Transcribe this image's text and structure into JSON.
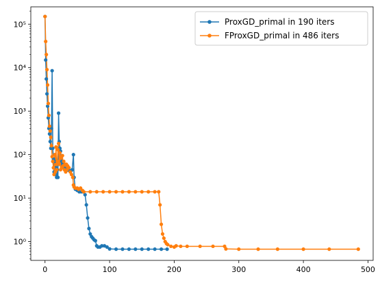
{
  "chart_data": {
    "type": "line",
    "title": "",
    "xlabel": "",
    "ylabel": "",
    "x_scale": "linear",
    "y_scale": "log",
    "xlim": [
      -22,
      508
    ],
    "ylim": [
      0.37,
      250000
    ],
    "grid": false,
    "legend_position": "top-right",
    "x_ticks": [
      0,
      100,
      200,
      300,
      400,
      500
    ],
    "x_tick_labels": [
      "0",
      "100",
      "200",
      "300",
      "400",
      "500"
    ],
    "y_ticks": [
      1,
      10,
      100,
      1000,
      10000,
      100000
    ],
    "y_tick_labels": [
      "10⁰",
      "10¹",
      "10²",
      "10³",
      "10⁴",
      "10⁵"
    ],
    "series": [
      {
        "name": "ProxGD_primal in 190 iters",
        "color": "#1f77b4",
        "iterations": 190,
        "points": [
          [
            0,
            150000
          ],
          [
            1,
            15000
          ],
          [
            2,
            5500
          ],
          [
            3,
            2500
          ],
          [
            4,
            1300
          ],
          [
            5,
            700
          ],
          [
            6,
            400
          ],
          [
            7,
            300
          ],
          [
            8,
            200
          ],
          [
            9,
            140
          ],
          [
            10,
            400
          ],
          [
            11,
            8500
          ],
          [
            12,
            140
          ],
          [
            13,
            80
          ],
          [
            14,
            40
          ],
          [
            15,
            70
          ],
          [
            16,
            35
          ],
          [
            17,
            50
          ],
          [
            18,
            30
          ],
          [
            19,
            45
          ],
          [
            20,
            30
          ],
          [
            21,
            900
          ],
          [
            22,
            200
          ],
          [
            23,
            140
          ],
          [
            24,
            120
          ],
          [
            25,
            90
          ],
          [
            26,
            70
          ],
          [
            27,
            60
          ],
          [
            28,
            55
          ],
          [
            29,
            50
          ],
          [
            30,
            48
          ],
          [
            32,
            46
          ],
          [
            34,
            45
          ],
          [
            36,
            44
          ],
          [
            38,
            43
          ],
          [
            40,
            42
          ],
          [
            42,
            45
          ],
          [
            44,
            100
          ],
          [
            45,
            30
          ],
          [
            47,
            16
          ],
          [
            50,
            15
          ],
          [
            53,
            14
          ],
          [
            56,
            14
          ],
          [
            59,
            14
          ],
          [
            62,
            12
          ],
          [
            64,
            7
          ],
          [
            66,
            3.5
          ],
          [
            68,
            2
          ],
          [
            70,
            1.5
          ],
          [
            72,
            1.3
          ],
          [
            74,
            1.2
          ],
          [
            76,
            1.1
          ],
          [
            78,
            1.05
          ],
          [
            80,
            0.8
          ],
          [
            82,
            0.75
          ],
          [
            85,
            0.75
          ],
          [
            88,
            0.8
          ],
          [
            92,
            0.8
          ],
          [
            96,
            0.75
          ],
          [
            100,
            0.68
          ],
          [
            110,
            0.67
          ],
          [
            120,
            0.67
          ],
          [
            130,
            0.67
          ],
          [
            140,
            0.67
          ],
          [
            150,
            0.67
          ],
          [
            160,
            0.67
          ],
          [
            170,
            0.67
          ],
          [
            180,
            0.67
          ],
          [
            189,
            0.67
          ]
        ]
      },
      {
        "name": "FProxGD_primal in 486 iters",
        "color": "#ff7f0e",
        "iterations": 486,
        "points": [
          [
            0,
            150000
          ],
          [
            1,
            40000
          ],
          [
            2,
            20000
          ],
          [
            3,
            9000
          ],
          [
            4,
            4000
          ],
          [
            5,
            1500
          ],
          [
            6,
            800
          ],
          [
            7,
            450
          ],
          [
            8,
            350
          ],
          [
            9,
            250
          ],
          [
            10,
            160
          ],
          [
            11,
            90
          ],
          [
            12,
            70
          ],
          [
            13,
            50
          ],
          [
            14,
            35
          ],
          [
            15,
            100
          ],
          [
            16,
            40
          ],
          [
            17,
            150
          ],
          [
            18,
            45
          ],
          [
            19,
            70
          ],
          [
            20,
            130
          ],
          [
            21,
            180
          ],
          [
            22,
            60
          ],
          [
            23,
            110
          ],
          [
            24,
            45
          ],
          [
            25,
            90
          ],
          [
            26,
            50
          ],
          [
            27,
            95
          ],
          [
            28,
            55
          ],
          [
            29,
            70
          ],
          [
            30,
            45
          ],
          [
            31,
            60
          ],
          [
            32,
            40
          ],
          [
            33,
            60
          ],
          [
            34,
            45
          ],
          [
            35,
            55
          ],
          [
            37,
            50
          ],
          [
            39,
            40
          ],
          [
            41,
            35
          ],
          [
            43,
            30
          ],
          [
            44,
            20
          ],
          [
            45,
            18
          ],
          [
            47,
            17
          ],
          [
            50,
            17
          ],
          [
            52,
            16
          ],
          [
            55,
            17
          ],
          [
            58,
            15
          ],
          [
            60,
            14
          ],
          [
            70,
            14
          ],
          [
            80,
            14
          ],
          [
            90,
            14
          ],
          [
            100,
            14
          ],
          [
            110,
            14
          ],
          [
            120,
            14
          ],
          [
            130,
            14
          ],
          [
            140,
            14
          ],
          [
            150,
            14
          ],
          [
            160,
            14
          ],
          [
            170,
            14
          ],
          [
            176,
            14
          ],
          [
            178,
            7
          ],
          [
            180,
            2.5
          ],
          [
            182,
            1.5
          ],
          [
            184,
            1.2
          ],
          [
            186,
            1.0
          ],
          [
            188,
            0.9
          ],
          [
            190,
            0.85
          ],
          [
            195,
            0.78
          ],
          [
            200,
            0.75
          ],
          [
            203,
            0.8
          ],
          [
            210,
            0.78
          ],
          [
            220,
            0.78
          ],
          [
            240,
            0.78
          ],
          [
            260,
            0.78
          ],
          [
            278,
            0.78
          ],
          [
            280,
            0.68
          ],
          [
            300,
            0.67
          ],
          [
            330,
            0.67
          ],
          [
            360,
            0.67
          ],
          [
            400,
            0.67
          ],
          [
            440,
            0.67
          ],
          [
            485,
            0.67
          ]
        ]
      }
    ]
  }
}
